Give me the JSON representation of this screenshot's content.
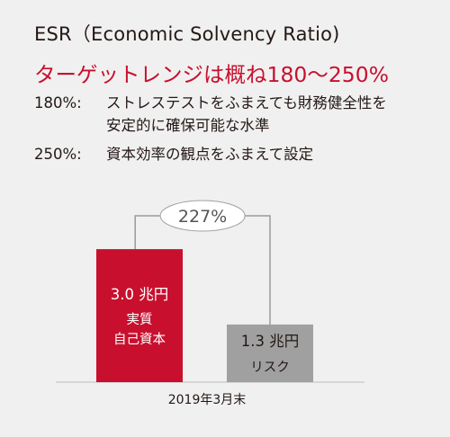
{
  "header": {
    "title": "ESR（Economic Solvency Ratio)",
    "target_range": "ターゲットレンジは概ね180〜250%"
  },
  "notes": [
    {
      "threshold": "180%:",
      "lines": [
        "ストレステストをふまえても財務健全性を",
        "安定的に確保可能な水準"
      ]
    },
    {
      "threshold": "250%:",
      "lines": [
        "資本効率の観点をふまえて設定"
      ]
    }
  ],
  "colors": {
    "accent": "#c8102e",
    "risk_bar": "#a0a0a0",
    "background": "#f0f0f0"
  },
  "chart_data": {
    "type": "bar",
    "x_label": "2019年3月末",
    "ratio_label": "227%",
    "bars": [
      {
        "value": 3.0,
        "value_label": "3.0 兆円",
        "name_lines": [
          "実質",
          "自己資本"
        ],
        "color": "#c8102e"
      },
      {
        "value": 1.3,
        "value_label": "1.3 兆円",
        "name_lines": [
          "リスク"
        ],
        "color": "#a0a0a0"
      }
    ]
  }
}
